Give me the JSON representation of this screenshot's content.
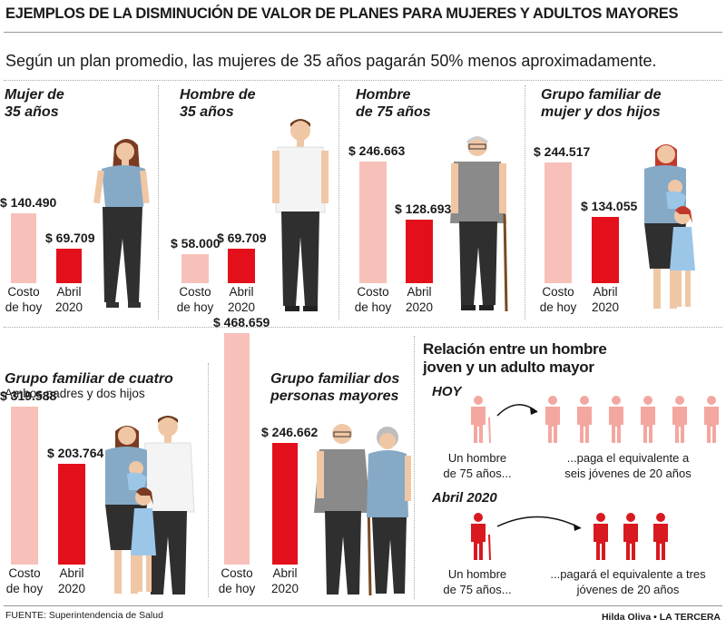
{
  "title": "EJEMPLOS DE LA DISMINUCIÓN DE VALOR DE PLANES PARA MUJERES Y ADULTOS MAYORES",
  "subtitle": "Según un plan promedio, las mujeres de 35 años pagarán 50% menos aproximadamente.",
  "colors": {
    "hoy": "#f7c1ba",
    "abril": "#e3101c",
    "light_person": "#f4a7a0",
    "dark_person": "#d81920"
  },
  "panels": [
    {
      "title": "Mujer de\n35 años",
      "subtitle": ""
    },
    {
      "title": "Hombre de\n35 años",
      "subtitle": ""
    },
    {
      "title": "Hombre\nde 75 años",
      "subtitle": ""
    },
    {
      "title": "Grupo familiar de\nmujer y dos hijos",
      "subtitle": ""
    },
    {
      "title": "Grupo familiar de cuatro",
      "subtitle": "Ambos padres y dos hijos"
    },
    {
      "title": "Grupo familiar dos\npersonas mayores",
      "subtitle": ""
    }
  ],
  "chart_data": [
    {
      "type": "bar",
      "title": "Mujer de 35 años",
      "categories": [
        "Costo de hoy",
        "Abril 2020"
      ],
      "values": [
        140490,
        69709
      ],
      "labels": [
        "$ 140.490",
        "$ 69.709"
      ]
    },
    {
      "type": "bar",
      "title": "Hombre de 35 años",
      "categories": [
        "Costo de hoy",
        "Abril 2020"
      ],
      "values": [
        58000,
        69709
      ],
      "labels": [
        "$ 58.000",
        "$ 69.709"
      ]
    },
    {
      "type": "bar",
      "title": "Hombre de 75 años",
      "categories": [
        "Costo de hoy",
        "Abril 2020"
      ],
      "values": [
        246663,
        128693
      ],
      "labels": [
        "$ 246.663",
        "$ 128.693"
      ]
    },
    {
      "type": "bar",
      "title": "Grupo familiar de mujer y dos hijos",
      "categories": [
        "Costo de hoy",
        "Abril 2020"
      ],
      "values": [
        244517,
        134055
      ],
      "labels": [
        "$ 244.517",
        "$ 134.055"
      ]
    },
    {
      "type": "bar",
      "title": "Grupo familiar de cuatro",
      "categories": [
        "Costo de hoy",
        "Abril 2020"
      ],
      "values": [
        319588,
        203764
      ],
      "labels": [
        "$ 319.588",
        "$ 203.764"
      ]
    },
    {
      "type": "bar",
      "title": "Grupo familiar dos personas mayores",
      "categories": [
        "Costo de hoy",
        "Abril 2020"
      ],
      "values": [
        468659,
        246662
      ],
      "labels": [
        "$ 468.659",
        "$ 246.662"
      ]
    }
  ],
  "categories": [
    "Costo\nde hoy",
    "Abril\n2020"
  ],
  "relation": {
    "title": "Relación entre un hombre\njoven y un adulto mayor",
    "hoy": {
      "label": "HOY",
      "left_text": "Un hombre\nde 75 años...",
      "right_text": "...paga el equivalente a\nseis jóvenes de 20 años",
      "young_count": 6
    },
    "abril": {
      "label": "Abril 2020",
      "left_text": "Un hombre\nde 75 años...",
      "right_text": "...pagará el equivalente a tres\njóvenes de 20 años",
      "young_count": 3
    }
  },
  "source": "FUENTE: Superintendencia de Salud",
  "credit": "Hilda Oliva • LA TERCERA"
}
